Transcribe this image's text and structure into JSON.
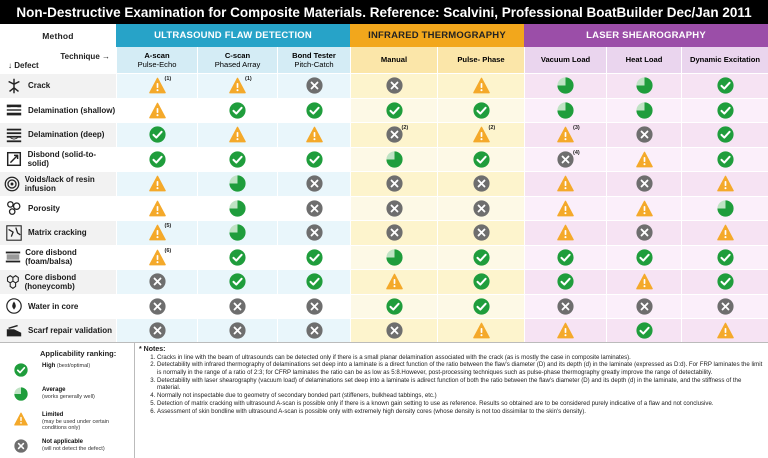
{
  "title": "Non-Destructive Examination for Composite Materials. Reference: Scalvini, Professional BoatBuilder Dec/Jan 2011",
  "header": {
    "method": "Method",
    "technique": "Technique →",
    "defect": "↓ Defect",
    "groups": [
      "ULTRASOUND FLAW DETECTION",
      "INFRARED THERMOGRAPHY",
      "LASER SHEAROGRAPHY"
    ]
  },
  "columns": [
    {
      "name": "A-scan",
      "sub": "Pulse-Echo"
    },
    {
      "name": "C-scan",
      "sub": "Phased Array"
    },
    {
      "name": "Bond Tester",
      "sub": "Pitch-Catch"
    },
    {
      "name": "Manual",
      "sub": ""
    },
    {
      "name": "Pulse- Phase",
      "sub": ""
    },
    {
      "name": "Vacuum Load",
      "sub": ""
    },
    {
      "name": "Heat Load",
      "sub": ""
    },
    {
      "name": "Dynamic Excitation",
      "sub": ""
    }
  ],
  "rows": [
    {
      "label": "Crack",
      "icon": "crack-icon",
      "cells": [
        "L",
        "L",
        "X",
        "X",
        "L",
        "A",
        "A",
        "H"
      ],
      "notes": {
        "0": "(1)",
        "1": "(1)"
      }
    },
    {
      "label": "Delamination (shallow)",
      "icon": "delamination-shallow-icon",
      "cells": [
        "L",
        "H",
        "H",
        "H",
        "H",
        "A",
        "A",
        "H"
      ],
      "notes": {}
    },
    {
      "label": "Delamination (deep)",
      "icon": "delamination-deep-icon",
      "cells": [
        "H",
        "L",
        "L",
        "X",
        "L",
        "L",
        "X",
        "H"
      ],
      "notes": {
        "3": "(2)",
        "4": "(2)",
        "5": "(3)"
      }
    },
    {
      "label": "Disbond (solid-to-solid)",
      "icon": "disbond-icon",
      "cells": [
        "H",
        "H",
        "H",
        "A",
        "H",
        "X",
        "L",
        "H"
      ],
      "notes": {
        "5": "(4)"
      }
    },
    {
      "label": "Voids/lack of resin infusion",
      "icon": "voids-icon",
      "cells": [
        "L",
        "A",
        "X",
        "X",
        "X",
        "L",
        "X",
        "L"
      ],
      "notes": {}
    },
    {
      "label": "Porosity",
      "icon": "porosity-icon",
      "cells": [
        "L",
        "A",
        "X",
        "X",
        "X",
        "L",
        "L",
        "A"
      ],
      "notes": {}
    },
    {
      "label": "Matrix cracking",
      "icon": "matrix-cracking-icon",
      "cells": [
        "L",
        "A",
        "X",
        "X",
        "X",
        "L",
        "X",
        "L"
      ],
      "notes": {
        "0": "(5)"
      }
    },
    {
      "label": "Core disbond (foam/balsa)",
      "icon": "core-disbond-foam-icon",
      "cells": [
        "L",
        "H",
        "H",
        "A",
        "H",
        "H",
        "H",
        "H"
      ],
      "notes": {
        "0": "(6)"
      }
    },
    {
      "label": "Core disbond (honeycomb)",
      "icon": "core-disbond-honeycomb-icon",
      "cells": [
        "X",
        "H",
        "H",
        "L",
        "H",
        "H",
        "L",
        "H"
      ],
      "notes": {}
    },
    {
      "label": "Water in core",
      "icon": "water-in-core-icon",
      "cells": [
        "X",
        "X",
        "X",
        "H",
        "H",
        "X",
        "X",
        "X"
      ],
      "notes": {}
    },
    {
      "label": "Scarf repair validation",
      "icon": "scarf-repair-icon",
      "cells": [
        "X",
        "X",
        "X",
        "X",
        "L",
        "L",
        "H",
        "L"
      ],
      "notes": {}
    }
  ],
  "legend": {
    "title": "Applicability ranking:",
    "items": [
      {
        "code": "H",
        "label": "High",
        "desc": " (best/optimal)"
      },
      {
        "code": "A",
        "label": "Average",
        "desc": "(works generally well)"
      },
      {
        "code": "L",
        "label": "Limited",
        "desc": "(may be used under certain conditions only)"
      },
      {
        "code": "X",
        "label": "Not applicable",
        "desc": "(will not detect the defect)"
      }
    ]
  },
  "notes_title": "* Notes:",
  "notes": [
    "Cracks in line with the beam of ultrasounds can be detected only if there is a small planar delamination associated with the crack (as is mostly the case in composite laminates).",
    "Detectability with infrared thermography of delaminations set deep into a laminate is a direct function of the ratio between the flaw's diameter (D) and its depth (d) in the laminate (expressed as D:d). For FRP laminates the limit is normally in the range of a ratio of 2:3; for CFRP laminates the ratio can be as low as 5:8.However, post-processing techniques such as pulse-phase thermography greatly improve the range of detectability.",
    "Detectability with laser shearography (vacuum load) of delaminations set deep into a laminate is adirect function of both the ratio between the flaw's diameter (D) and its depth (d) in the laminate, and the stiffness of the material.",
    "Normally not inspectable due to geometry of secondary bonded part (stiffeners, bulkhead tabbings, etc.)",
    "Detection of matrix cracking with ultrasound A-scan is possible only if there is a known gain setting to use as reference. Results so obtained are to be considered purely indicative of a flaw and not conclusive.",
    "Assessment of skin bondline with ultrasound A-scan is possible only with extremely high density cores (whose density is not too dissimilar to the skin's density)."
  ],
  "colors": {
    "ut": "#27a3c8",
    "ir": "#f2a71c",
    "ls": "#9b4ea8",
    "high": "#1f9d3c",
    "limited": "#f4a92a",
    "not": "#6e6e6e"
  }
}
